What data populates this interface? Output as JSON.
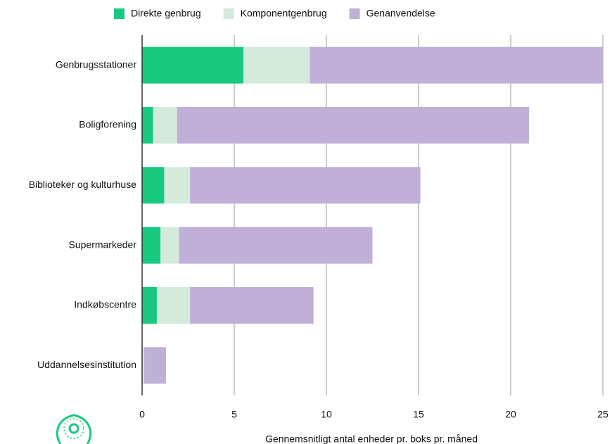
{
  "chart_data": {
    "type": "stacked-barh",
    "x_label": "Gennemsnitligt antal enheder pr. boks pr. måned",
    "categories": [
      "Genbrugsstationer",
      "Boligforening",
      "Biblioteker og kulturhuse",
      "Supermarkeder",
      "Indkøbscentre",
      "Uddannelsesinstitution"
    ],
    "series": [
      {
        "name": "Direkte genbrug",
        "color": "#18c97f",
        "values": [
          5.5,
          0.6,
          1.2,
          1.0,
          0.8,
          0
        ]
      },
      {
        "name": "Komponentgenbrug",
        "color": "#d4eadb",
        "values": [
          3.6,
          1.3,
          1.4,
          1.0,
          1.8,
          0.1
        ]
      },
      {
        "name": "Genanvendelse",
        "color": "#c0b0d8",
        "values": [
          15.9,
          19.1,
          12.5,
          10.5,
          6.7,
          1.2
        ]
      }
    ],
    "xlim": [
      0,
      25
    ],
    "xticks": [
      0,
      5,
      10,
      15,
      20,
      25
    ],
    "grid": true,
    "legend": "top"
  }
}
